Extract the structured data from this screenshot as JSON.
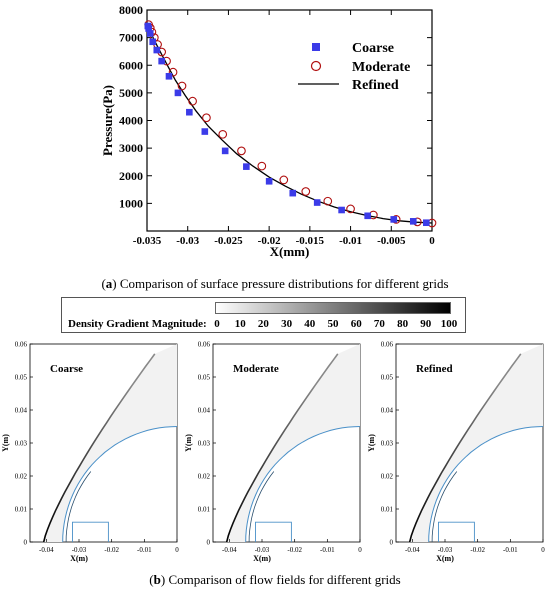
{
  "colors": {
    "coarse": "#3b3be8",
    "moderate": "#b01010",
    "refined": "#000000",
    "body_line": "#4a90c8",
    "shock_line": "#000000"
  },
  "chart_data": [
    {
      "type": "line",
      "title": "",
      "xlabel": "X(mm)",
      "ylabel": "Pressure(Pa)",
      "xlim": [
        -0.035,
        0
      ],
      "ylim": [
        0,
        8000
      ],
      "xticks": [
        "-0.035",
        "-0.03",
        "-0.025",
        "-0.02",
        "-0.015",
        "-0.01",
        "-0.005",
        "0"
      ],
      "yticks": [
        "1000",
        "2000",
        "3000",
        "4000",
        "5000",
        "6000",
        "7000",
        "8000"
      ],
      "legend_position": "top-right",
      "series": [
        {
          "name": "Coarse",
          "marker": "square",
          "x": [
            -0.0349,
            -0.0348,
            -0.0346,
            -0.0343,
            -0.0338,
            -0.0332,
            -0.0323,
            -0.0312,
            -0.0298,
            -0.0279,
            -0.0254,
            -0.0228,
            -0.02,
            -0.0171,
            -0.0141,
            -0.0111,
            -0.0079,
            -0.0047,
            -0.0023,
            -0.0007
          ],
          "y": [
            7420,
            7330,
            7150,
            6850,
            6550,
            6150,
            5600,
            5000,
            4300,
            3600,
            2900,
            2330,
            1800,
            1370,
            1030,
            760,
            550,
            420,
            350,
            300
          ]
        },
        {
          "name": "Moderate",
          "marker": "circle",
          "x": [
            -0.0348,
            -0.0346,
            -0.0344,
            -0.0341,
            -0.0337,
            -0.0332,
            -0.0326,
            -0.0318,
            -0.0307,
            -0.0294,
            -0.0277,
            -0.0257,
            -0.0234,
            -0.0209,
            -0.0182,
            -0.0155,
            -0.0128,
            -0.01,
            -0.0072,
            -0.0044,
            -0.0018,
            0.0
          ],
          "y": [
            7470,
            7350,
            7200,
            7000,
            6750,
            6480,
            6150,
            5750,
            5250,
            4700,
            4100,
            3500,
            2900,
            2350,
            1850,
            1430,
            1080,
            800,
            580,
            420,
            330,
            290
          ]
        },
        {
          "name": "Refined",
          "marker": "line",
          "x": [
            -0.035,
            -0.0348,
            -0.0345,
            -0.034,
            -0.0333,
            -0.0325,
            -0.0315,
            -0.0303,
            -0.029,
            -0.0275,
            -0.0258,
            -0.024,
            -0.022,
            -0.02,
            -0.018,
            -0.016,
            -0.014,
            -0.012,
            -0.01,
            -0.008,
            -0.006,
            -0.004,
            -0.002,
            0.0
          ],
          "y": [
            7500,
            7350,
            7150,
            6850,
            6450,
            6000,
            5450,
            4900,
            4350,
            3800,
            3300,
            2800,
            2350,
            1950,
            1620,
            1330,
            1080,
            870,
            700,
            560,
            450,
            370,
            320,
            290
          ]
        }
      ]
    },
    {
      "type": "heatmap",
      "panel": "Coarse",
      "xlabel": "X(m)",
      "ylabel": "Y(m)",
      "xlim": [
        -0.045,
        0
      ],
      "ylim": [
        0,
        0.06
      ],
      "xticks": [
        "-0.04",
        "-0.03",
        "-0.02",
        "-0.01",
        "0"
      ],
      "yticks": [
        "0",
        "0.01",
        "0.02",
        "0.03",
        "0.04",
        "0.05",
        "0.06"
      ]
    },
    {
      "type": "heatmap",
      "panel": "Moderate",
      "xlabel": "X(m)",
      "ylabel": "Y(m)",
      "xlim": [
        -0.045,
        0
      ],
      "ylim": [
        0,
        0.06
      ],
      "xticks": [
        "-0.04",
        "-0.03",
        "-0.02",
        "-0.01",
        "0"
      ],
      "yticks": [
        "0",
        "0.01",
        "0.02",
        "0.03",
        "0.04",
        "0.05",
        "0.06"
      ]
    },
    {
      "type": "heatmap",
      "panel": "Refined",
      "xlabel": "X(m)",
      "ylabel": "Y(m)",
      "xlim": [
        -0.045,
        0
      ],
      "ylim": [
        0,
        0.06
      ],
      "xticks": [
        "-0.04",
        "-0.03",
        "-0.02",
        "-0.01",
        "0"
      ],
      "yticks": [
        "0",
        "0.01",
        "0.02",
        "0.03",
        "0.04",
        "0.05",
        "0.06"
      ]
    }
  ],
  "colorbar": {
    "title": "Density Gradient Magnitude:",
    "ticks": [
      "0",
      "10",
      "20",
      "30",
      "40",
      "50",
      "60",
      "70",
      "80",
      "90",
      "100"
    ],
    "range": [
      0,
      100
    ]
  },
  "captions": {
    "a_label": "a",
    "a_text": " Comparison of surface pressure distributions for different grids",
    "b_label": "b",
    "b_text": " Comparison of flow fields for different grids"
  }
}
